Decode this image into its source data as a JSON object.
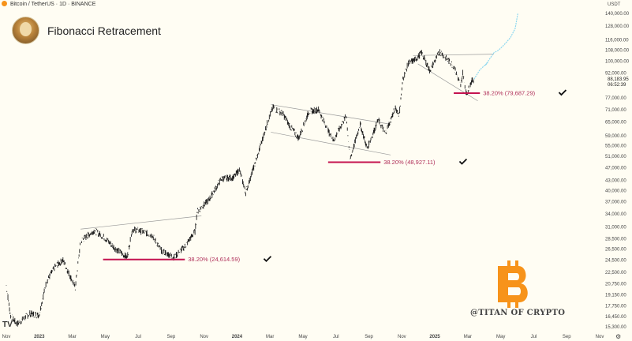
{
  "header": {
    "symbol_line": "Bitcoin / TetherUS · 1D · BINANCE",
    "title": "Fibonacci Retracement",
    "currency": "USDT",
    "last_price": "88,183.95",
    "countdown": "06:52:39",
    "watermark": "@TITAN OF CRYPTO",
    "tv_logo": "TV"
  },
  "colors": {
    "background": "#fffdf3",
    "candle": "#1e1e1e",
    "fib_line": "#c4134f",
    "fib_label": "#b0305a",
    "projection": "#8fd8f0",
    "channel": "#9a9a9a",
    "bitcoin": "#f7931a"
  },
  "chart_data": {
    "type": "line",
    "y_scale": "log",
    "ylim": [
      15300,
      140000
    ],
    "y_ticks": [
      "140,000.00",
      "128,000.00",
      "116,000.00",
      "108,000.00",
      "100,000.00",
      "92,000.00",
      "77,000.00",
      "71,000.00",
      "65,000.00",
      "59,000.00",
      "55,000.00",
      "51,000.00",
      "47,000.00",
      "43,000.00",
      "40,000.00",
      "37,000.00",
      "34,000.00",
      "31,000.00",
      "28,500.00",
      "26,500.00",
      "24,500.00",
      "22,500.00",
      "20,750.00",
      "19,150.00",
      "17,750.00",
      "16,450.00",
      "15,300.00"
    ],
    "x_ticks": [
      "Nov",
      "2023",
      "Mar",
      "May",
      "Jul",
      "Sep",
      "Nov",
      "2024",
      "Mar",
      "May",
      "Jul",
      "Sep",
      "Nov",
      "2025",
      "Mar",
      "May",
      "Jul",
      "Sep",
      "Nov"
    ],
    "x_range": [
      "2022-11-01",
      "2025-11-15"
    ],
    "price": {
      "dates": [
        "2022-11-01",
        "2022-11-09",
        "2022-11-21",
        "2022-12-15",
        "2023-01-01",
        "2023-01-15",
        "2023-02-01",
        "2023-02-15",
        "2023-03-10",
        "2023-03-20",
        "2023-04-14",
        "2023-05-01",
        "2023-05-25",
        "2023-06-15",
        "2023-06-25",
        "2023-07-13",
        "2023-08-01",
        "2023-08-17",
        "2023-09-11",
        "2023-10-01",
        "2023-10-20",
        "2023-10-24",
        "2023-11-15",
        "2023-12-08",
        "2024-01-01",
        "2024-01-11",
        "2024-01-23",
        "2024-02-15",
        "2024-03-05",
        "2024-03-14",
        "2024-04-01",
        "2024-04-15",
        "2024-05-01",
        "2024-05-20",
        "2024-06-07",
        "2024-06-25",
        "2024-07-05",
        "2024-07-29",
        "2024-08-05",
        "2024-08-24",
        "2024-09-06",
        "2024-09-27",
        "2024-10-10",
        "2024-10-29",
        "2024-11-05",
        "2024-11-12",
        "2024-11-22",
        "2024-12-05",
        "2024-12-17",
        "2025-01-01",
        "2025-01-20",
        "2025-02-01",
        "2025-02-15",
        "2025-02-28",
        "2025-03-04",
        "2025-03-11",
        "2025-03-20",
        "2025-03-25"
      ],
      "values": [
        20500,
        16500,
        15600,
        16800,
        16600,
        21000,
        23500,
        24500,
        20200,
        28000,
        30200,
        29000,
        26500,
        25000,
        30500,
        30000,
        29200,
        26300,
        25000,
        27000,
        30000,
        34500,
        37500,
        43500,
        44000,
        46500,
        39500,
        52000,
        66000,
        72000,
        69000,
        63000,
        58000,
        70000,
        71000,
        61000,
        57000,
        68000,
        50000,
        64000,
        54000,
        66000,
        60000,
        72000,
        68500,
        88000,
        98500,
        101000,
        106000,
        93500,
        107000,
        102000,
        96500,
        84000,
        92000,
        79000,
        86500,
        88000
      ]
    },
    "fib_levels": [
      {
        "label": "38.20% (24,614.59)",
        "value": 24614.59,
        "x_start": "2023-05-01",
        "x_end": "2023-10-01"
      },
      {
        "label": "38.20% (48,927.11)",
        "value": 48927.11,
        "x_start": "2024-06-25",
        "x_end": "2024-10-01"
      },
      {
        "label": "38.20% (79,687.29)",
        "value": 79687.29,
        "x_start": "2025-02-15",
        "x_end": "2025-04-05"
      }
    ],
    "channels": [
      {
        "upper": [
          [
            "2023-03-20",
            30500
          ],
          [
            "2023-11-01",
            33500
          ]
        ],
        "lower": null
      },
      {
        "upper": [
          [
            "2024-03-10",
            73500
          ],
          [
            "2024-10-20",
            64000
          ]
        ],
        "lower": [
          [
            "2024-03-10",
            60500
          ],
          [
            "2024-10-20",
            51500
          ]
        ]
      },
      {
        "upper": [
          [
            "2024-12-01",
            104000
          ],
          [
            "2025-05-01",
            105000
          ]
        ],
        "lower": [
          [
            "2024-12-10",
            98000
          ],
          [
            "2025-04-01",
            75500
          ]
        ]
      }
    ],
    "projection": {
      "dates": [
        "2025-03-25",
        "2025-04-05",
        "2025-04-20",
        "2025-04-15",
        "2025-05-01",
        "2025-05-10",
        "2025-05-20",
        "2025-06-01",
        "2025-06-10",
        "2025-06-15"
      ],
      "values": [
        88000,
        94000,
        99000,
        97000,
        106000,
        108000,
        112000,
        118000,
        126000,
        140000
      ]
    }
  }
}
